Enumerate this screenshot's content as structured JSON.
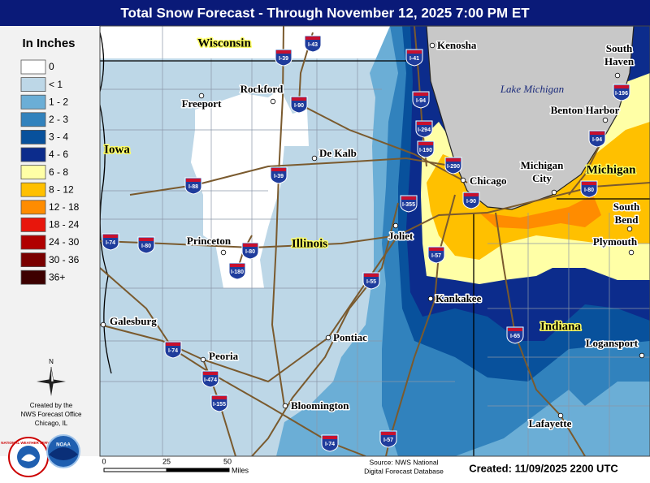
{
  "header": {
    "title": "Total Snow Forecast - Through November 12, 2025 7:00 PM ET"
  },
  "legend": {
    "title": "In Inches",
    "items": [
      {
        "label": "0",
        "color": "#ffffff"
      },
      {
        "label": "< 1",
        "color": "#bdd7e7"
      },
      {
        "label": "1 - 2",
        "color": "#6baed6"
      },
      {
        "label": "2 - 3",
        "color": "#3182bd"
      },
      {
        "label": "3 - 4",
        "color": "#08519c"
      },
      {
        "label": "4 - 6",
        "color": "#0c2c8c"
      },
      {
        "label": "6 - 8",
        "color": "#ffffa6"
      },
      {
        "label": "8 - 12",
        "color": "#ffc000"
      },
      {
        "label": "12 - 18",
        "color": "#ff8c00"
      },
      {
        "label": "18 - 24",
        "color": "#e8160c"
      },
      {
        "label": "24 - 30",
        "color": "#b00000"
      },
      {
        "label": "30 - 36",
        "color": "#7a0000"
      },
      {
        "label": "36+",
        "color": "#3d0000"
      }
    ]
  },
  "map": {
    "lake": "Lake Michigan",
    "states": [
      "Wisconsin",
      "Iowa",
      "Illinois",
      "Indiana",
      "Michigan"
    ],
    "cities": [
      {
        "lines": [
          "Kenosha"
        ]
      },
      {
        "lines": [
          "South",
          "Haven"
        ]
      },
      {
        "lines": [
          "Rockford"
        ]
      },
      {
        "lines": [
          "Freeport"
        ]
      },
      {
        "lines": [
          "De Kalb"
        ]
      },
      {
        "lines": [
          "Benton Harbor"
        ]
      },
      {
        "lines": [
          "Chicago"
        ]
      },
      {
        "lines": [
          "Michigan",
          "City"
        ]
      },
      {
        "lines": [
          "South",
          "Bend"
        ]
      },
      {
        "lines": [
          "Joliet"
        ]
      },
      {
        "lines": [
          "Princeton"
        ]
      },
      {
        "lines": [
          "Plymouth"
        ]
      },
      {
        "lines": [
          "Kankakee"
        ]
      },
      {
        "lines": [
          "Galesburg"
        ]
      },
      {
        "lines": [
          "Pontiac"
        ]
      },
      {
        "lines": [
          "Logansport"
        ]
      },
      {
        "lines": [
          "Peoria"
        ]
      },
      {
        "lines": [
          "Bloomington"
        ]
      },
      {
        "lines": [
          "Lafayette"
        ]
      }
    ],
    "interstates": [
      "I-39",
      "I-43",
      "I-41",
      "I-94",
      "I-90",
      "I-294",
      "I-190",
      "I-290",
      "I-90",
      "I-88",
      "I-39",
      "I-355",
      "I-94",
      "I-196",
      "I-80",
      "I-57",
      "I-80",
      "I-74",
      "I-80",
      "I-180",
      "I-55",
      "I-74",
      "I-474",
      "I-155",
      "I-74",
      "I-57",
      "I-65"
    ]
  },
  "compass": "N",
  "credit": [
    "Created by the",
    "NWS Forecast Office",
    "Chicago, IL"
  ],
  "logos": [
    "NATIONAL WEATHER SERVICE",
    "NOAA"
  ],
  "scale": {
    "ticks": [
      "0",
      "25",
      "50"
    ],
    "unit": "Miles"
  },
  "source": [
    "Source: NWS National",
    "Digital Forecast Database"
  ],
  "created": "Created: 11/09/2025 2200 UTC"
}
